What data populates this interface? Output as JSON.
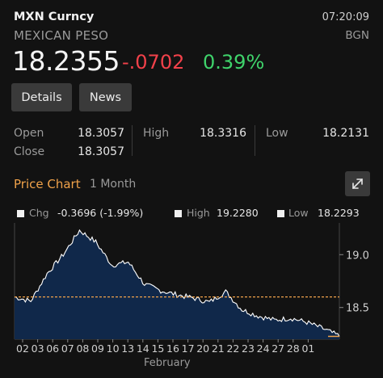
{
  "header": {
    "ticker": "MXN Curncy",
    "time": "07:20:09",
    "name": "MEXICAN PESO",
    "source": "BGN",
    "price": "18.2355",
    "change": "-.0702",
    "change_pct": "0.39%",
    "colors": {
      "negative": "#f2414a",
      "positive": "#3fd36b"
    }
  },
  "buttons": {
    "details": "Details",
    "news": "News"
  },
  "stats": {
    "open_label": "Open",
    "open": "18.3057",
    "close_label": "Close",
    "close": "18.3057",
    "high_label": "High",
    "high": "18.3316",
    "low_label": "Low",
    "low": "18.2131"
  },
  "chart_header": {
    "title": "Price Chart",
    "range": "1 Month",
    "expand_icon": "expand-arrows-icon"
  },
  "legend": {
    "chg_label": "Chg",
    "chg": "-0.3696 (-1.99%)",
    "high_label": "High",
    "high": "19.2280",
    "low_label": "Low",
    "low": "18.2293"
  },
  "chart_data": {
    "type": "area",
    "title": "",
    "xlabel": "February",
    "ylabel": "",
    "ylim": [
      18.2,
      19.3
    ],
    "y_ticks": [
      "19.0",
      "18.5"
    ],
    "y_tick_values": [
      19.0,
      18.5
    ],
    "reference_line": 18.6,
    "reference_color": "#f0a24a",
    "fill_color": "#10284a",
    "line_color": "#ffffff",
    "x_tick_labels": [
      "02",
      "03",
      "06",
      "07",
      "08",
      "09",
      "10",
      "13",
      "14",
      "15",
      "16",
      "17",
      "20",
      "21",
      "22",
      "23",
      "24",
      "27",
      "28",
      "01"
    ],
    "series": [
      {
        "values": [
          18.6,
          18.56,
          18.82,
          19.0,
          19.23,
          19.12,
          18.9,
          18.93,
          18.72,
          18.66,
          18.62,
          18.59,
          18.55,
          18.65,
          18.48,
          18.42,
          18.38,
          18.4,
          18.36,
          18.3,
          18.23
        ]
      }
    ]
  }
}
